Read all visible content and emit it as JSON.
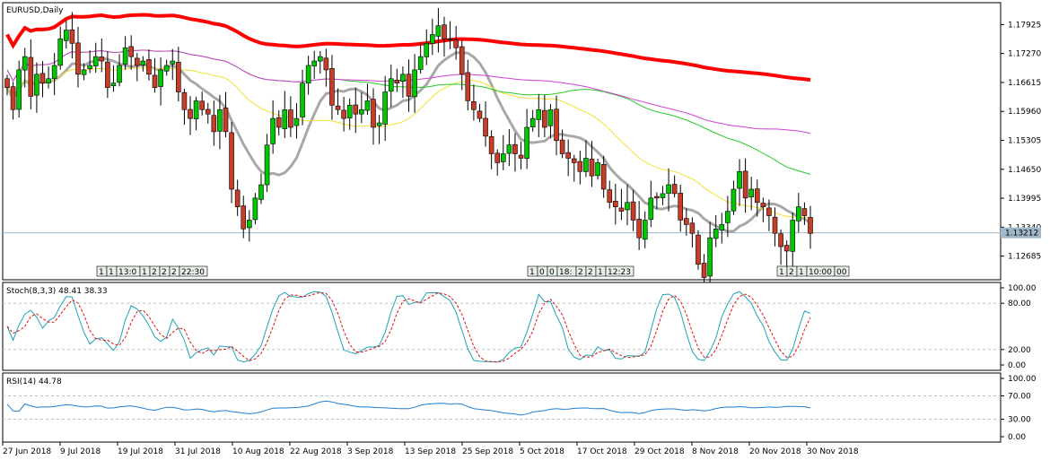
{
  "chart_data": {
    "type": "candlestick",
    "symbol_label": "EURUSD,Daily",
    "price_axis": {
      "ticks": [
        "1.17925",
        "1.17270",
        "1.16615",
        "1.15960",
        "1.15305",
        "1.14650",
        "1.13995",
        "1.13340",
        "1.12685"
      ],
      "range": [
        1.1215,
        1.1842
      ],
      "current_price_label": "1.13212",
      "current_price": 1.13212
    },
    "x_axis_labels": [
      "27 Jun 2018",
      "9 Jul 2018",
      "19 Jul 2018",
      "31 Jul 2018",
      "10 Aug 2018",
      "22 Aug 2018",
      "3 Sep 2018",
      "13 Sep 2018",
      "25 Sep 2018",
      "5 Oct 2018",
      "17 Oct 2018",
      "29 Oct 2018",
      "8 Nov 2018",
      "20 Nov 2018",
      "30 Nov 2018"
    ],
    "event_markers": [
      {
        "labels": [
          "1",
          "1",
          "13:0",
          "1",
          "2",
          "2",
          "2",
          "22:30"
        ]
      },
      {
        "labels": [
          "1",
          "0",
          "0",
          "18:",
          "2",
          "2",
          "1",
          "12:23"
        ]
      },
      {
        "labels": [
          "1",
          "2",
          "1",
          "10:00",
          "00"
        ]
      }
    ],
    "closes": [
      1.165,
      1.16,
      1.169,
      1.172,
      1.163,
      1.168,
      1.166,
      1.167,
      1.17,
      1.176,
      1.178,
      1.175,
      1.168,
      1.169,
      1.17,
      1.172,
      1.171,
      1.165,
      1.166,
      1.17,
      1.174,
      1.172,
      1.17,
      1.171,
      1.168,
      1.165,
      1.169,
      1.17,
      1.171,
      1.164,
      1.16,
      1.158,
      1.162,
      1.16,
      1.159,
      1.155,
      1.16,
      1.155,
      1.142,
      1.138,
      1.133,
      1.135,
      1.14,
      1.143,
      1.152,
      1.158,
      1.156,
      1.16,
      1.156,
      1.158,
      1.166,
      1.17,
      1.171,
      1.172,
      1.169,
      1.161,
      1.16,
      1.158,
      1.161,
      1.159,
      1.16,
      1.162,
      1.156,
      1.157,
      1.164,
      1.167,
      1.166,
      1.168,
      1.163,
      1.169,
      1.172,
      1.175,
      1.177,
      1.179,
      1.176,
      1.176,
      1.174,
      1.168,
      1.162,
      1.16,
      1.158,
      1.154,
      1.15,
      1.148,
      1.15,
      1.152,
      1.15,
      1.149,
      1.156,
      1.158,
      1.16,
      1.156,
      1.16,
      1.153,
      1.15,
      1.149,
      1.148,
      1.146,
      1.149,
      1.145,
      1.148,
      1.142,
      1.139,
      1.138,
      1.137,
      1.139,
      1.135,
      1.131,
      1.135,
      1.14,
      1.14,
      1.141,
      1.143,
      1.141,
      1.135,
      1.134,
      1.132,
      1.125,
      1.122,
      1.131,
      1.133,
      1.134,
      1.137,
      1.142,
      1.146,
      1.14,
      1.142,
      1.139,
      1.138,
      1.136,
      1.132,
      1.129,
      1.128,
      1.135,
      1.138,
      1.136,
      1.132
    ],
    "moving_averages": [
      {
        "name": "MA gray",
        "color": "#a8a8a8",
        "width": 3
      },
      {
        "name": "MA yellow",
        "color": "#f2e036",
        "width": 1
      },
      {
        "name": "MA green",
        "color": "#28c828",
        "width": 1
      },
      {
        "name": "MA magenta",
        "color": "#d040d0",
        "width": 1
      },
      {
        "name": "MA red",
        "color": "#ff0000",
        "width": 4
      }
    ],
    "colors": {
      "bull": "#00c800",
      "bear": "#c83c28",
      "wick": "#000000",
      "grid": "#c8c8c8",
      "bid_line": "#a0b8c8"
    },
    "stochastic": {
      "label": "Stoch(8,3,3) 48.41 38.33",
      "ticks": [
        "100.00",
        "80.00",
        "20.00",
        "0.00"
      ],
      "levels": [
        80,
        20
      ],
      "main_color": "#1fa2b8",
      "signal_color": "#e01010"
    },
    "rsi": {
      "label": "RSI(14) 44.78",
      "ticks": [
        "100.00",
        "70.00",
        "30.00",
        "0.00"
      ],
      "levels": [
        70,
        30
      ],
      "color": "#1f7fd0"
    }
  }
}
